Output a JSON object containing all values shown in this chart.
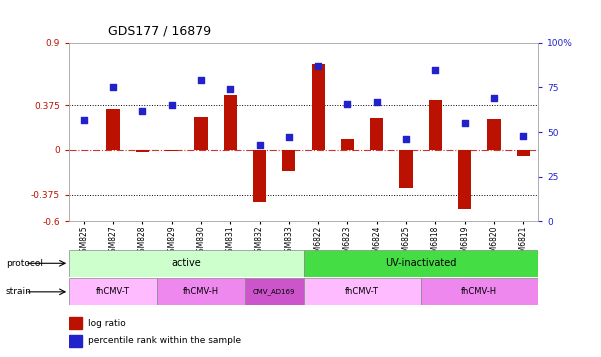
{
  "title": "GDS177 / 16879",
  "samples": [
    "GSM825",
    "GSM827",
    "GSM828",
    "GSM829",
    "GSM830",
    "GSM831",
    "GSM832",
    "GSM833",
    "GSM6822",
    "GSM6823",
    "GSM6824",
    "GSM6825",
    "GSM6818",
    "GSM6819",
    "GSM6820",
    "GSM6821"
  ],
  "log_ratio": [
    0.0,
    0.34,
    -0.02,
    -0.01,
    0.28,
    0.46,
    -0.44,
    -0.18,
    0.72,
    0.09,
    0.27,
    -0.32,
    0.42,
    -0.5,
    0.26,
    -0.05
  ],
  "percentile_rank": [
    57,
    75,
    62,
    65,
    79,
    74,
    43,
    47,
    87,
    66,
    67,
    46,
    85,
    55,
    69,
    48
  ],
  "ylim_left": [
    -0.6,
    0.9
  ],
  "ylim_right": [
    0,
    100
  ],
  "yticks_left": [
    -0.6,
    -0.375,
    0,
    0.375,
    0.9
  ],
  "ytick_labels_left": [
    "-0.6",
    "-0.375",
    "0",
    "0.375",
    "0.9"
  ],
  "yticks_right": [
    0,
    25,
    50,
    75,
    100
  ],
  "ytick_labels_right": [
    "0",
    "25",
    "50",
    "75",
    "100%"
  ],
  "hlines": [
    0.375,
    -0.375
  ],
  "bar_color": "#bb1100",
  "dot_color": "#2222cc",
  "zero_line_color": "#cc3333",
  "hline_color": "#000000",
  "protocol_groups": [
    {
      "label": "active",
      "start": 0,
      "end": 8,
      "color": "#ccffcc"
    },
    {
      "label": "UV-inactivated",
      "start": 8,
      "end": 16,
      "color": "#44dd44"
    }
  ],
  "strain_groups": [
    {
      "label": "fhCMV-T",
      "start": 0,
      "end": 3,
      "color": "#ffbbff"
    },
    {
      "label": "fhCMV-H",
      "start": 3,
      "end": 6,
      "color": "#ee88ee"
    },
    {
      "label": "CMV_AD169",
      "start": 6,
      "end": 8,
      "color": "#cc55cc"
    },
    {
      "label": "fhCMV-T",
      "start": 8,
      "end": 12,
      "color": "#ffbbff"
    },
    {
      "label": "fhCMV-H",
      "start": 12,
      "end": 16,
      "color": "#ee88ee"
    }
  ],
  "legend_items": [
    {
      "label": "log ratio",
      "color": "#bb1100"
    },
    {
      "label": "percentile rank within the sample",
      "color": "#2222cc"
    }
  ],
  "bar_width": 0.45,
  "dot_size": 18,
  "figsize": [
    6.01,
    3.57
  ],
  "dpi": 100
}
